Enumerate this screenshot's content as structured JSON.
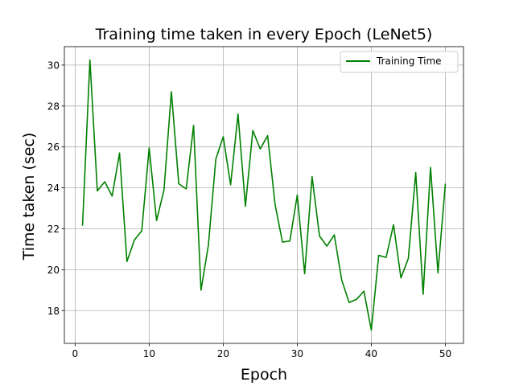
{
  "chart_data": {
    "type": "line",
    "title": "Training time taken in every Epoch (LeNet5)",
    "xlabel": "Epoch",
    "ylabel": "Time taken (sec)",
    "xlim": [
      -1.45,
      52.45
    ],
    "ylim": [
      16.4,
      30.9
    ],
    "xticks": [
      0,
      10,
      20,
      30,
      40,
      50
    ],
    "yticks": [
      18,
      20,
      22,
      24,
      26,
      28,
      30
    ],
    "grid": true,
    "legend_position": "top-right",
    "series": [
      {
        "name": "Training Time",
        "color": "#008000",
        "x": [
          1,
          2,
          3,
          4,
          5,
          6,
          7,
          8,
          9,
          10,
          11,
          12,
          13,
          14,
          15,
          16,
          17,
          18,
          19,
          20,
          21,
          22,
          23,
          24,
          25,
          26,
          27,
          28,
          29,
          30,
          31,
          32,
          33,
          34,
          35,
          36,
          37,
          38,
          39,
          40,
          41,
          42,
          43,
          44,
          45,
          46,
          47,
          48,
          49,
          50
        ],
        "y": [
          22.15,
          30.25,
          23.85,
          24.3,
          23.6,
          25.7,
          20.4,
          21.45,
          21.9,
          25.95,
          22.4,
          23.9,
          28.7,
          24.2,
          23.95,
          27.05,
          19.0,
          21.2,
          25.4,
          26.5,
          24.15,
          27.6,
          23.1,
          26.8,
          25.9,
          26.55,
          23.2,
          21.35,
          21.4,
          23.65,
          19.8,
          24.55,
          21.65,
          21.15,
          21.7,
          19.5,
          18.4,
          18.55,
          18.95,
          17.05,
          20.7,
          20.6,
          22.2,
          19.6,
          20.55,
          24.75,
          18.8,
          25.0,
          19.85,
          24.2
        ]
      }
    ]
  }
}
